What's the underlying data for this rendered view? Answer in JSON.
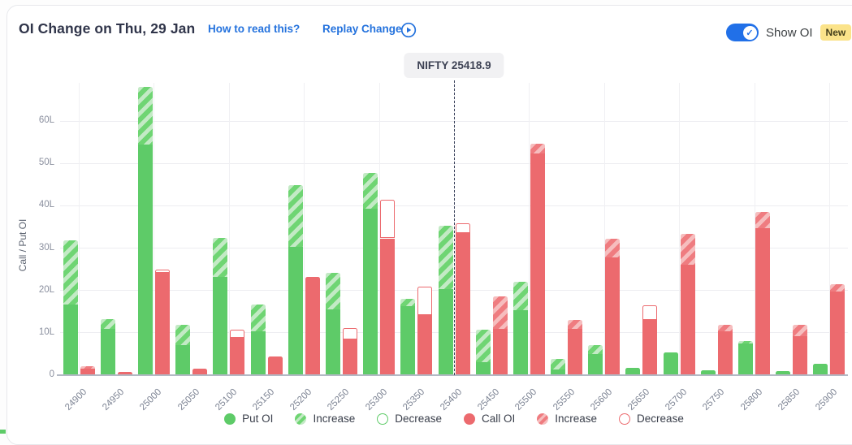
{
  "header": {
    "title": "OI Change on Thu, 29 Jan",
    "how_to_read": "How to read this?",
    "replay": "Replay Change",
    "show_oi_label": "Show OI",
    "new_badge": "New",
    "toggle_on": true
  },
  "colors": {
    "put": "#5ecb68",
    "put_hatch_light": "#c3eac5",
    "put_hatch_dark": "#6fd573",
    "call": "#ec6a6e",
    "call_hatch_light": "#f6bdbe",
    "call_hatch_dark": "#ef7c80",
    "accent_blue": "#2472dd",
    "toggle_blue": "#2170e8",
    "badge_yellow": "#fbe38a"
  },
  "chart_data": {
    "type": "bar",
    "title": "OI Change on Thu, 29 Jan",
    "ylabel": "Call / Put OI",
    "ylim": [
      0,
      69
    ],
    "ytick_step_label": "L",
    "yticks": [
      "0",
      "10L",
      "20L",
      "30L",
      "40L",
      "50L",
      "60L"
    ],
    "grid": true,
    "categories": [
      24900,
      24950,
      25000,
      25050,
      25100,
      25150,
      25200,
      25250,
      25300,
      25350,
      25400,
      25450,
      25500,
      25550,
      25600,
      25650,
      25700,
      25750,
      25800,
      25850,
      25900
    ],
    "series": [
      {
        "name": "Put OI",
        "key": "put",
        "bars": [
          {
            "total": 31.8,
            "solid": 16.6,
            "change": "increase"
          },
          {
            "total": 13.3,
            "solid": 11.0,
            "change": "increase"
          },
          {
            "total": 68.0,
            "solid": 54.5,
            "change": "increase"
          },
          {
            "total": 11.8,
            "solid": 7.0,
            "change": "increase"
          },
          {
            "total": 32.4,
            "solid": 23.2,
            "change": "increase"
          },
          {
            "total": 16.6,
            "solid": 10.4,
            "change": "increase"
          },
          {
            "total": 44.8,
            "solid": 30.3,
            "change": "increase"
          },
          {
            "total": 24.2,
            "solid": 15.5,
            "change": "increase"
          },
          {
            "total": 47.8,
            "solid": 39.3,
            "change": "increase"
          },
          {
            "total": 18.0,
            "solid": 16.3,
            "change": "increase"
          },
          {
            "total": 35.2,
            "solid": 20.3,
            "change": "increase"
          },
          {
            "total": 10.8,
            "solid": 3.1,
            "change": "increase"
          },
          {
            "total": 22.0,
            "solid": 15.3,
            "change": "increase"
          },
          {
            "total": 3.8,
            "solid": 1.4,
            "change": "increase"
          },
          {
            "total": 7.1,
            "solid": 5.0,
            "change": "increase"
          },
          {
            "total": 1.7,
            "solid": 1.7,
            "change": "none"
          },
          {
            "total": 5.3,
            "solid": 5.3,
            "change": "none"
          },
          {
            "total": 1.2,
            "solid": 1.2,
            "change": "none"
          },
          {
            "total": 8.0,
            "solid": 7.5,
            "change": "increase"
          },
          {
            "total": 1.0,
            "solid": 1.0,
            "change": "none"
          },
          {
            "total": 2.6,
            "solid": 2.6,
            "change": "none"
          }
        ]
      },
      {
        "name": "Call OI",
        "key": "call",
        "bars": [
          {
            "total": 2.1,
            "solid": 1.6,
            "change": "increase"
          },
          {
            "total": 0.8,
            "solid": 0.8,
            "change": "none"
          },
          {
            "total": 24.9,
            "solid": 24.2,
            "change": "decrease"
          },
          {
            "total": 1.5,
            "solid": 1.5,
            "change": "none"
          },
          {
            "total": 10.8,
            "solid": 8.8,
            "change": "decrease"
          },
          {
            "total": 4.4,
            "solid": 4.4,
            "change": "none"
          },
          {
            "total": 23.1,
            "solid": 23.1,
            "change": "none"
          },
          {
            "total": 11.2,
            "solid": 8.5,
            "change": "decrease"
          },
          {
            "total": 41.5,
            "solid": 32.3,
            "change": "decrease"
          },
          {
            "total": 20.8,
            "solid": 14.2,
            "change": "decrease"
          },
          {
            "total": 35.9,
            "solid": 33.6,
            "change": "decrease"
          },
          {
            "total": 18.6,
            "solid": 10.9,
            "change": "increase"
          },
          {
            "total": 54.6,
            "solid": 52.3,
            "change": "increase"
          },
          {
            "total": 13.0,
            "solid": 11.0,
            "change": "increase"
          },
          {
            "total": 32.3,
            "solid": 27.7,
            "change": "increase"
          },
          {
            "total": 16.5,
            "solid": 13.0,
            "change": "decrease"
          },
          {
            "total": 33.3,
            "solid": 26.0,
            "change": "increase"
          },
          {
            "total": 11.8,
            "solid": 10.4,
            "change": "increase"
          },
          {
            "total": 38.5,
            "solid": 34.7,
            "change": "increase"
          },
          {
            "total": 11.9,
            "solid": 9.2,
            "change": "increase"
          },
          {
            "total": 21.5,
            "solid": 19.8,
            "change": "increase"
          }
        ]
      }
    ],
    "nifty_line": {
      "label": "NIFTY 25418.9",
      "value": 25418.9
    },
    "legend": [
      {
        "label": "Put OI",
        "marker": "green-solid"
      },
      {
        "label": "Increase",
        "marker": "green-hatch"
      },
      {
        "label": "Decrease",
        "marker": "green-outline"
      },
      {
        "label": "Call OI",
        "marker": "red-solid"
      },
      {
        "label": "Increase",
        "marker": "red-hatch"
      },
      {
        "label": "Decrease",
        "marker": "red-outline"
      }
    ],
    "legend_position": "bottom"
  }
}
